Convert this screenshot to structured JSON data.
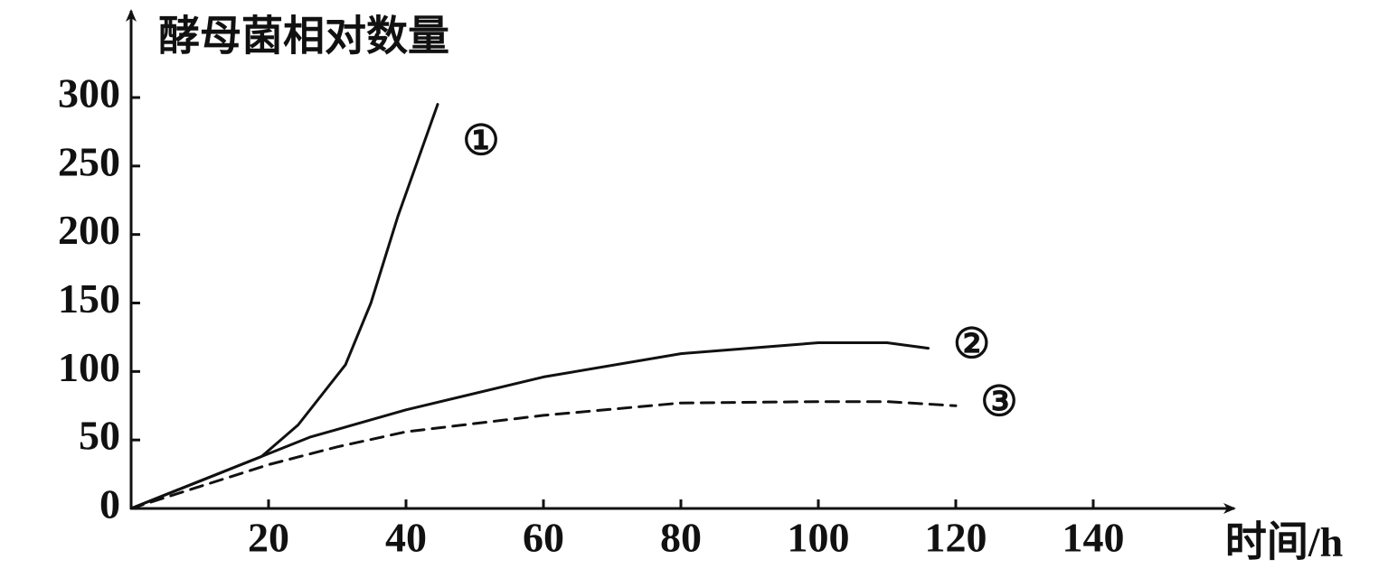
{
  "chart_data": {
    "type": "line",
    "y_label": "酵母菌相对数量",
    "x_label": "时间/h",
    "xlim": [
      0,
      160
    ],
    "ylim": [
      0,
      360
    ],
    "xticks": [
      20,
      40,
      60,
      80,
      100,
      120,
      140
    ],
    "yticks": [
      0,
      50,
      100,
      150,
      200,
      250,
      300
    ],
    "series": [
      {
        "name": "①",
        "color": "#111111",
        "line_style": "solid",
        "x": [
          0,
          5,
          10,
          15,
          19,
          24.3,
          31.2,
          34.9,
          38.8,
          44.6
        ],
        "values": [
          0,
          10,
          20,
          30,
          38,
          61,
          105,
          150,
          213,
          295
        ]
      },
      {
        "name": "②",
        "color": "#111111",
        "line_style": "solid",
        "x": [
          0,
          10,
          19,
          26,
          40,
          60,
          80,
          100,
          110,
          116
        ],
        "values": [
          0,
          20,
          38,
          52,
          72,
          96,
          113,
          121,
          121,
          117
        ]
      },
      {
        "name": "③",
        "color": "#111111",
        "line_style": "dashed",
        "x": [
          0,
          10,
          20,
          30,
          40,
          60,
          80,
          100,
          110,
          120
        ],
        "values": [
          0,
          16,
          32,
          45,
          56,
          68,
          77,
          78,
          78,
          75
        ]
      }
    ]
  }
}
